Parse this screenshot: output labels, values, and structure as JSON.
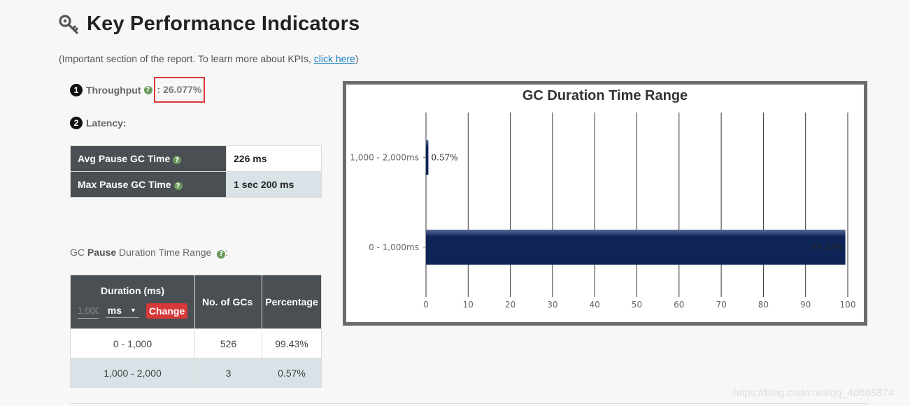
{
  "header": {
    "title": "Key Performance Indicators",
    "icon": "key-icon",
    "subtitle_prefix": "(Important section of the report. To learn more about KPIs, ",
    "subtitle_link": "click here",
    "subtitle_suffix": ")"
  },
  "throughput": {
    "number": "1",
    "label": "Throughput",
    "value": ": 26.077%",
    "highlight_color": "#d9383a"
  },
  "latency": {
    "number": "2",
    "label": "Latency:",
    "rows": [
      {
        "label": "Avg Pause GC Time",
        "value": "226 ms"
      },
      {
        "label": "Max Pause GC Time",
        "value": "1 sec 200 ms"
      }
    ]
  },
  "range_label": {
    "prefix": "GC ",
    "bold": "Pause",
    "suffix": " Duration Time Range",
    "colon": ":"
  },
  "duration_table": {
    "headers": {
      "duration": "Duration (ms)",
      "count": "No. of GCs",
      "percentage": "Percentage"
    },
    "input_value": "1,000",
    "unit": "ms",
    "change_label": "Change",
    "rows": [
      {
        "range": "0 - 1,000",
        "count": "526",
        "percentage": "99.43%"
      },
      {
        "range": "1,000 - 2,000",
        "count": "3",
        "percentage": "0.57%"
      }
    ]
  },
  "chart_data": {
    "type": "bar",
    "orientation": "horizontal",
    "title": "GC Duration Time Range",
    "categories": [
      "1,000 - 2,000ms",
      "0 - 1,000ms"
    ],
    "values": [
      0.57,
      99.43
    ],
    "data_labels": [
      "0.57%",
      "99.43%"
    ],
    "xlim": [
      0,
      100
    ],
    "x_ticks": [
      "0",
      "10",
      "20",
      "30",
      "40",
      "50",
      "60",
      "70",
      "80",
      "90",
      "100"
    ],
    "grid": true,
    "bar_color": "#0f2456"
  },
  "watermark": "https://blog.csdn.net/qq_40665874"
}
